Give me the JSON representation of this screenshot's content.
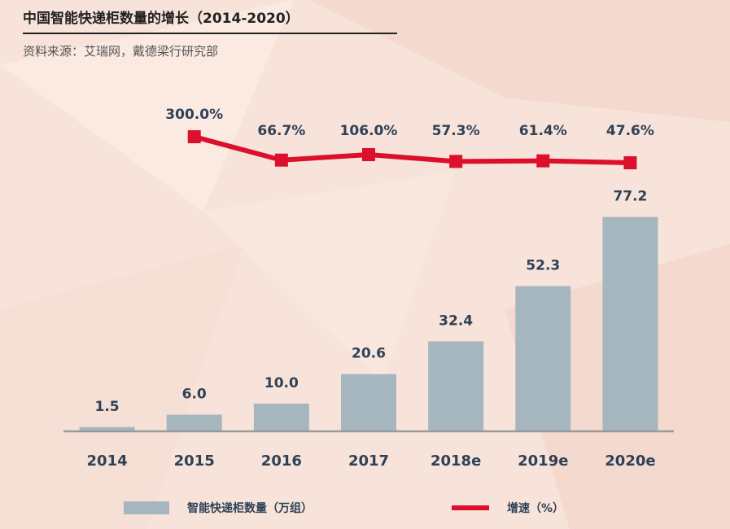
{
  "title": "中国智能快递柜数量的增长（2014-2020）",
  "source": "资料来源：艾瑞网，戴德梁行研究部",
  "chart_data": {
    "type": "bar+line",
    "categories": [
      "2014",
      "2015",
      "2016",
      "2017",
      "2018e",
      "2019e",
      "2020e"
    ],
    "series": [
      {
        "name": "智能快递柜数量（万组）",
        "type": "bar",
        "values": [
          1.5,
          6.0,
          10.0,
          20.6,
          32.4,
          52.3,
          77.2
        ],
        "labels": [
          "1.5",
          "6.0",
          "10.0",
          "20.6",
          "32.4",
          "52.3",
          "77.2"
        ],
        "color": "#a5b6be"
      },
      {
        "name": "增速（%）",
        "type": "line",
        "values": [
          null,
          300.0,
          66.7,
          106.0,
          57.3,
          61.4,
          47.6
        ],
        "labels": [
          null,
          "300.0%",
          "66.7%",
          "106.0%",
          "57.3%",
          "61.4%",
          "47.6%"
        ],
        "color": "#dc0f2d"
      }
    ],
    "ylim_bars": [
      0,
      85
    ],
    "legend": {
      "bar_label": "智能快递柜数量（万组）",
      "line_label": "增速（%）"
    }
  }
}
